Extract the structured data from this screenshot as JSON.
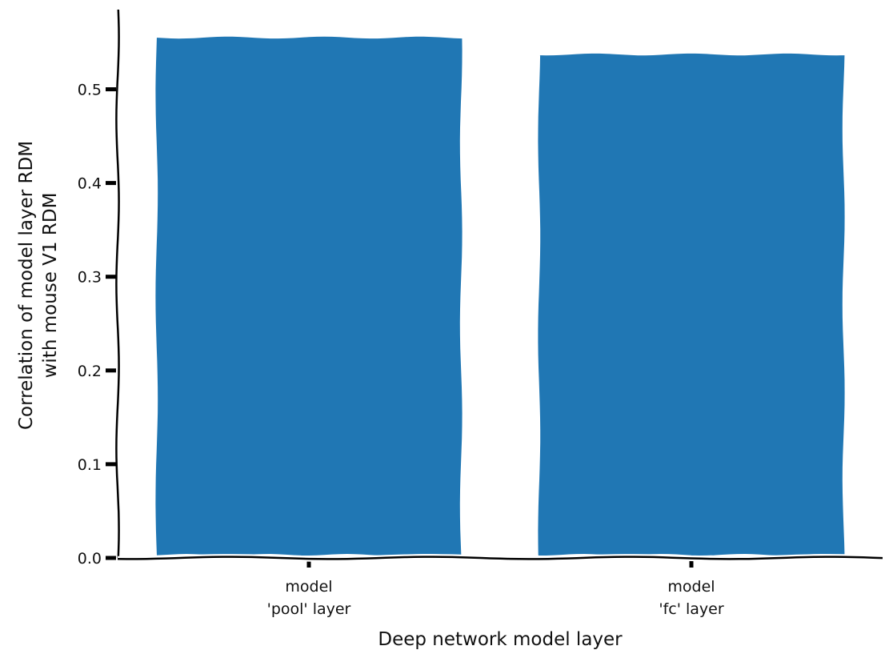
{
  "chart_data": {
    "type": "bar",
    "title": "",
    "xlabel": "Deep network model layer",
    "ylabel_lines": [
      "Correlation of model layer RDM",
      "with mouse V1 RDM"
    ],
    "categories": [
      [
        "model",
        "'pool' layer"
      ],
      [
        "model",
        "'fc' layer"
      ]
    ],
    "values": [
      0.556,
      0.538
    ],
    "ylim": [
      0,
      0.585
    ],
    "yticks": [
      0.0,
      0.1,
      0.2,
      0.3,
      0.4,
      0.5
    ],
    "ytick_labels": [
      "0.0",
      "0.1",
      "0.2",
      "0.3",
      "0.4",
      "0.5"
    ],
    "grid": false,
    "legend": "none",
    "bar_color": "#2077b4",
    "style": "xkcd"
  }
}
